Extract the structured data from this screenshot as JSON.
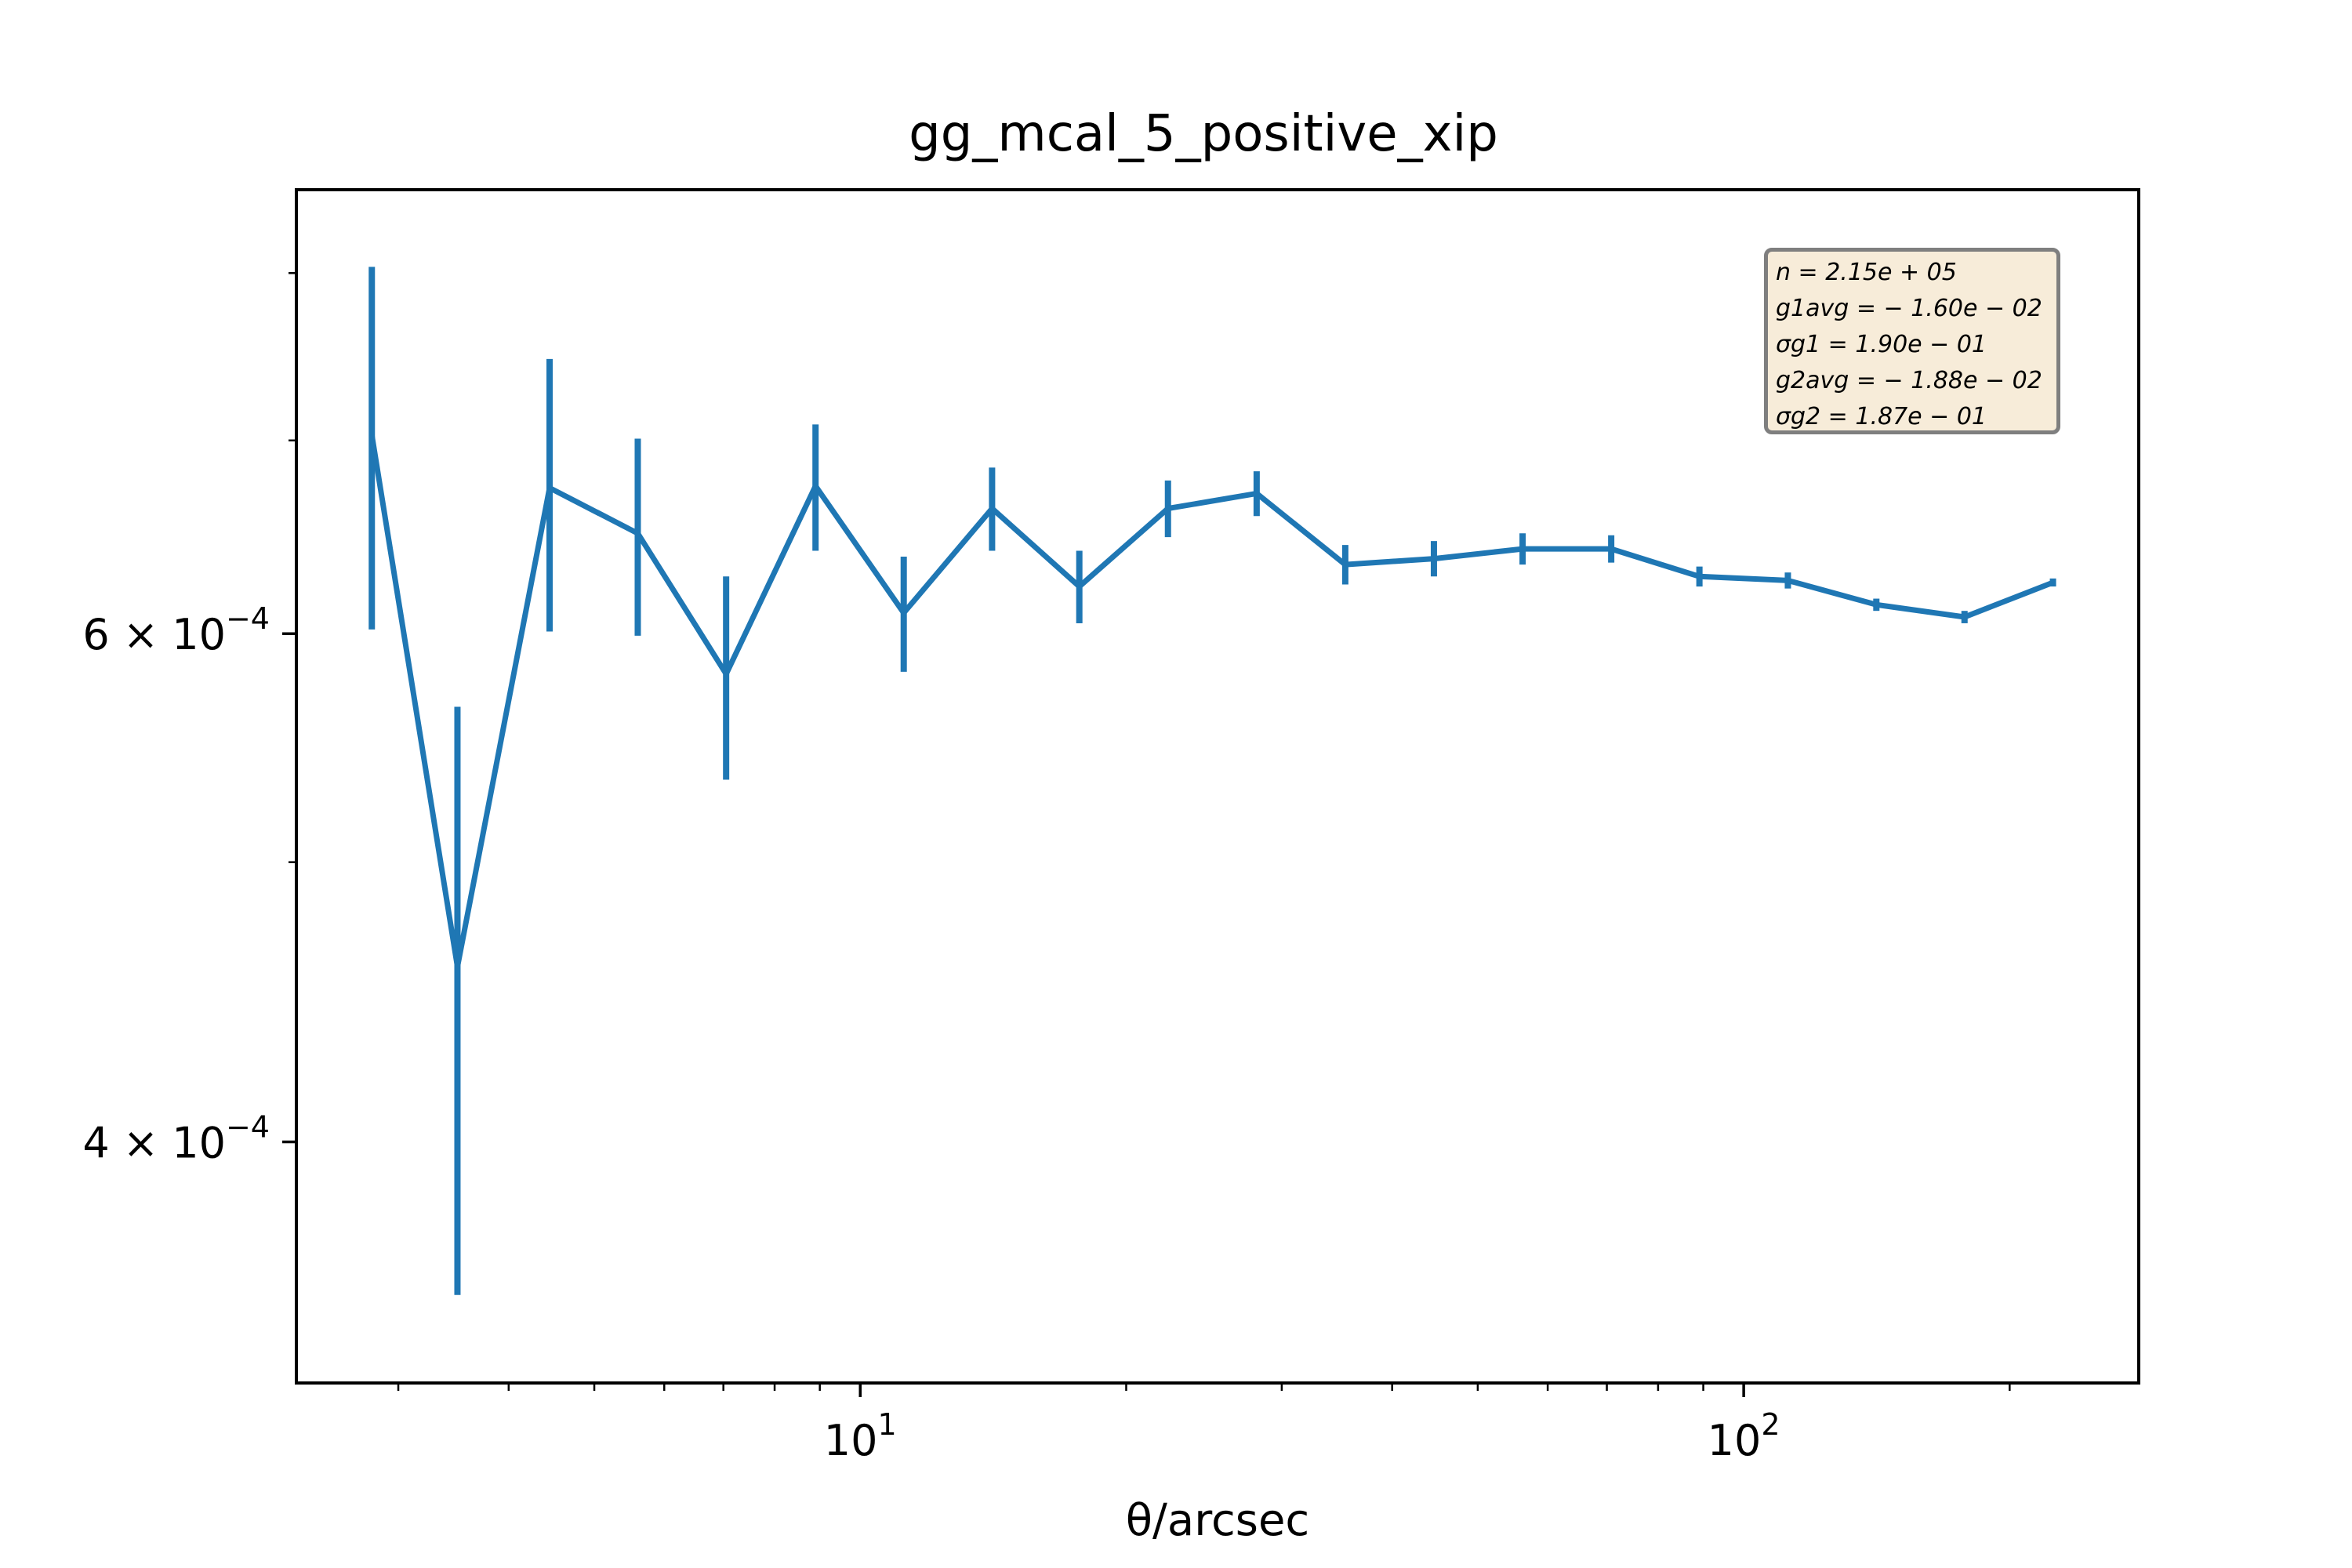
{
  "chart_data": {
    "type": "line",
    "title": "gg_mcal_5_positive_xip",
    "xlabel": "θ/arcsec",
    "ylabel": "",
    "xscale": "log",
    "yscale": "log",
    "xlim": [
      2.3,
      280
    ],
    "ylim": [
      0.00033,
      0.000855
    ],
    "x_ticks": [
      {
        "value": 10,
        "base": "10",
        "exp": "1"
      },
      {
        "value": 100,
        "base": "10",
        "exp": "2"
      }
    ],
    "y_ticks": [
      {
        "value": 0.0004,
        "base": "4 × 10",
        "exp": "−4"
      },
      {
        "value": 0.0006,
        "base": "6 × 10",
        "exp": "−4"
      }
    ],
    "grid": false,
    "series": [
      {
        "color": "#1f77b4",
        "x": [
          2.8,
          3.5,
          4.45,
          5.6,
          7.05,
          8.9,
          11.2,
          14.1,
          17.7,
          22.3,
          28.1,
          35.4,
          44.6,
          56.2,
          70.8,
          89.1,
          112.2,
          141.3,
          177.8,
          223.9
        ],
        "y": [
          0.000703,
          0.00046,
          0.000674,
          0.00065,
          0.000581,
          0.000675,
          0.00061,
          0.000663,
          0.000623,
          0.000663,
          0.000671,
          0.000634,
          0.000637,
          0.000642,
          0.000642,
          0.000628,
          0.000626,
          0.000614,
          0.000608,
          0.000625
        ],
        "yerr": [
          0.000101,
          0.000106,
          7.3e-05,
          5.1e-05,
          4.7e-05,
          3.4e-05,
          2.8e-05,
          2.2e-05,
          1.8e-05,
          1.5e-05,
          1.2e-05,
          1e-05,
          9e-06,
          8e-06,
          7e-06,
          5e-06,
          4e-06,
          3e-06,
          3e-06,
          2e-06
        ]
      }
    ]
  },
  "info_box": {
    "lines": [
      "n = 2.15e + 05",
      "g1avg = − 1.60e − 02",
      "σg1 = 1.90e − 01",
      "g2avg = − 1.88e − 02",
      "σg2 = 1.87e − 01"
    ]
  }
}
